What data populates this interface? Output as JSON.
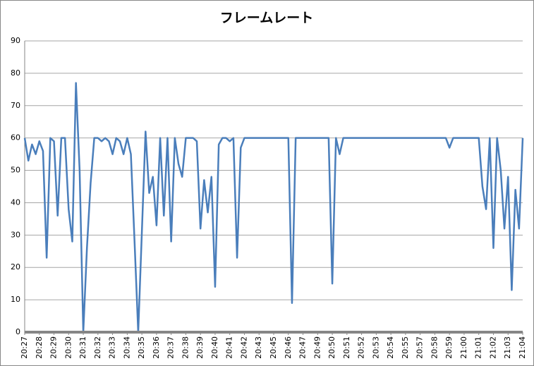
{
  "chart_data": {
    "type": "line",
    "title": "フレームレート",
    "categories": [
      "20:27",
      null,
      null,
      null,
      "20:28",
      null,
      null,
      null,
      "20:29",
      null,
      null,
      null,
      "20:30",
      null,
      null,
      null,
      "20:31",
      null,
      null,
      null,
      "20:32",
      null,
      null,
      null,
      "20:33",
      null,
      null,
      null,
      "20:34",
      null,
      null,
      null,
      "20:35",
      null,
      null,
      null,
      "20:36",
      null,
      null,
      null,
      "20:37",
      null,
      null,
      null,
      "20:38",
      null,
      null,
      null,
      "20:39",
      null,
      null,
      null,
      "20:40",
      null,
      null,
      null,
      "20:41",
      null,
      null,
      null,
      "20:42",
      null,
      null,
      null,
      "20:43",
      null,
      null,
      null,
      "20:45",
      null,
      null,
      null,
      "20:46",
      null,
      null,
      null,
      "20:47",
      null,
      null,
      null,
      "20:49",
      null,
      null,
      null,
      "20:50",
      null,
      null,
      null,
      "20:51",
      null,
      null,
      null,
      "20:52",
      null,
      null,
      null,
      "20:53",
      null,
      null,
      null,
      "20:54",
      null,
      null,
      null,
      "20:55",
      null,
      null,
      null,
      "20:57",
      null,
      null,
      null,
      "20:58",
      null,
      null,
      null,
      "20:59",
      null,
      null,
      null,
      "21:00",
      null,
      null,
      null,
      "21:01",
      null,
      null,
      null,
      "21:02",
      null,
      null,
      null,
      "21:03",
      null,
      null,
      null,
      "21:04"
    ],
    "series": [
      {
        "color": "#4a7ebb",
        "values": [
          60,
          53,
          58,
          55,
          59,
          56,
          23,
          60,
          59,
          36,
          60,
          60,
          38,
          28,
          77,
          50,
          0,
          26,
          46,
          60,
          60,
          59,
          60,
          59,
          55,
          60,
          59,
          55,
          60,
          55,
          28,
          0,
          31,
          62,
          43,
          48,
          33,
          60,
          36,
          60,
          28,
          60,
          52,
          48,
          60,
          60,
          60,
          59,
          32,
          47,
          37,
          48,
          14,
          58,
          60,
          60,
          59,
          60,
          23,
          57,
          60,
          60,
          60,
          60,
          60,
          60,
          60,
          60,
          60,
          60,
          60,
          60,
          60,
          9,
          60,
          60,
          60,
          60,
          60,
          60,
          60,
          60,
          60,
          60,
          15,
          60,
          55,
          60,
          60,
          60,
          60,
          60,
          60,
          60,
          60,
          60,
          60,
          60,
          60,
          60,
          60,
          60,
          60,
          60,
          60,
          60,
          60,
          60,
          60,
          60,
          60,
          60,
          60,
          60,
          60,
          60,
          57,
          60,
          60,
          60,
          60,
          60,
          60,
          60,
          60,
          45,
          38,
          60,
          26,
          60,
          50,
          32,
          48,
          13,
          44,
          32,
          60
        ]
      }
    ],
    "ylim": [
      0,
      90
    ],
    "yticks": [
      0,
      10,
      20,
      30,
      40,
      50,
      60,
      70,
      80,
      90
    ],
    "grid": true
  }
}
